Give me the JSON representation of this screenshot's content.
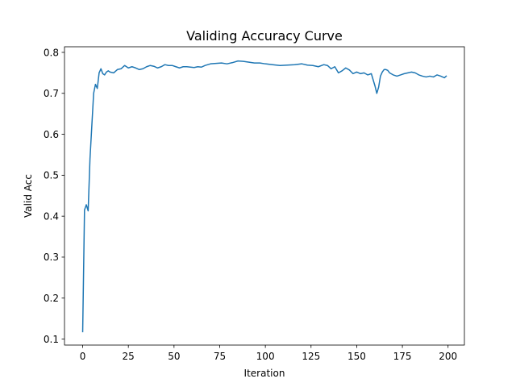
{
  "chart_data": {
    "type": "line",
    "title": "Validing Accuracy Curve",
    "xlabel": "Iteration",
    "ylabel": "Valid Acc",
    "xlim": [
      -9.95,
      208.95
    ],
    "ylim": [
      0.0853,
      0.8137
    ],
    "grid": false,
    "xticks": [
      0,
      25,
      50,
      75,
      100,
      125,
      150,
      175,
      200
    ],
    "yticks": [
      0.1,
      0.2,
      0.3,
      0.4,
      0.5,
      0.6,
      0.7,
      0.8
    ],
    "xtick_labels": [
      "0",
      "25",
      "50",
      "75",
      "100",
      "125",
      "150",
      "175",
      "200"
    ],
    "ytick_labels": [
      "0.1",
      "0.2",
      "0.3",
      "0.4",
      "0.5",
      "0.6",
      "0.7",
      "0.8"
    ],
    "series": [
      {
        "color": "#1f77b4",
        "x": [
          0,
          1,
          2,
          3,
          4,
          5,
          6,
          7,
          8,
          9,
          10,
          11,
          12,
          13,
          14,
          15,
          17,
          19,
          21,
          23,
          25,
          27,
          29,
          31,
          33,
          35,
          37,
          39,
          41,
          43,
          45,
          47,
          49,
          51,
          53,
          55,
          57,
          59,
          61,
          63,
          65,
          67,
          70,
          73,
          76,
          79,
          82,
          85,
          88,
          91,
          94,
          97,
          100,
          104,
          108,
          112,
          116,
          120,
          123,
          126,
          129,
          132,
          134,
          136,
          138,
          140,
          142,
          144,
          146,
          148,
          150,
          152,
          154,
          156,
          158,
          160,
          161,
          162,
          163,
          164,
          165,
          166,
          167,
          168,
          170,
          172,
          174,
          176,
          178,
          180,
          182,
          184,
          186,
          188,
          190,
          192,
          194,
          196,
          198,
          199
        ],
        "y": [
          0.118,
          0.415,
          0.428,
          0.413,
          0.54,
          0.62,
          0.7,
          0.722,
          0.712,
          0.75,
          0.76,
          0.748,
          0.745,
          0.752,
          0.755,
          0.752,
          0.75,
          0.758,
          0.76,
          0.768,
          0.762,
          0.765,
          0.762,
          0.758,
          0.76,
          0.765,
          0.768,
          0.766,
          0.762,
          0.765,
          0.77,
          0.768,
          0.768,
          0.765,
          0.762,
          0.765,
          0.765,
          0.764,
          0.763,
          0.765,
          0.764,
          0.768,
          0.772,
          0.773,
          0.774,
          0.772,
          0.775,
          0.779,
          0.778,
          0.776,
          0.774,
          0.774,
          0.772,
          0.77,
          0.768,
          0.769,
          0.77,
          0.772,
          0.769,
          0.768,
          0.765,
          0.77,
          0.768,
          0.76,
          0.765,
          0.75,
          0.755,
          0.762,
          0.757,
          0.748,
          0.752,
          0.748,
          0.75,
          0.745,
          0.748,
          0.718,
          0.7,
          0.715,
          0.742,
          0.752,
          0.758,
          0.758,
          0.756,
          0.75,
          0.745,
          0.742,
          0.745,
          0.748,
          0.75,
          0.752,
          0.75,
          0.745,
          0.742,
          0.74,
          0.742,
          0.74,
          0.745,
          0.742,
          0.738,
          0.742
        ]
      }
    ]
  }
}
